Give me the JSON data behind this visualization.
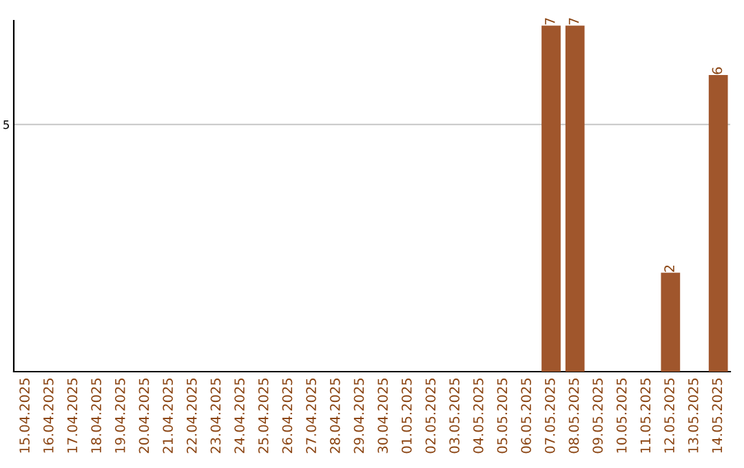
{
  "chart_data": {
    "type": "bar",
    "categories": [
      "15.04.2025",
      "16.04.2025",
      "17.04.2025",
      "18.04.2025",
      "19.04.2025",
      "20.04.2025",
      "21.04.2025",
      "22.04.2025",
      "23.04.2025",
      "24.04.2025",
      "25.04.2025",
      "26.04.2025",
      "27.04.2025",
      "28.04.2025",
      "29.04.2025",
      "30.04.2025",
      "01.05.2025",
      "02.05.2025",
      "03.05.2025",
      "04.05.2025",
      "05.05.2025",
      "06.05.2025",
      "07.05.2025",
      "08.05.2025",
      "09.05.2025",
      "10.05.2025",
      "11.05.2025",
      "12.05.2025",
      "13.05.2025",
      "14.05.2025"
    ],
    "values": [
      null,
      null,
      null,
      null,
      null,
      null,
      null,
      null,
      null,
      null,
      null,
      null,
      null,
      null,
      null,
      null,
      null,
      null,
      null,
      null,
      null,
      null,
      7,
      7,
      null,
      null,
      null,
      2,
      null,
      6
    ],
    "color": "#a0562c",
    "ylim": [
      0,
      7.1
    ],
    "yticks": [
      5
    ],
    "grid": "y",
    "data_labels": true
  }
}
